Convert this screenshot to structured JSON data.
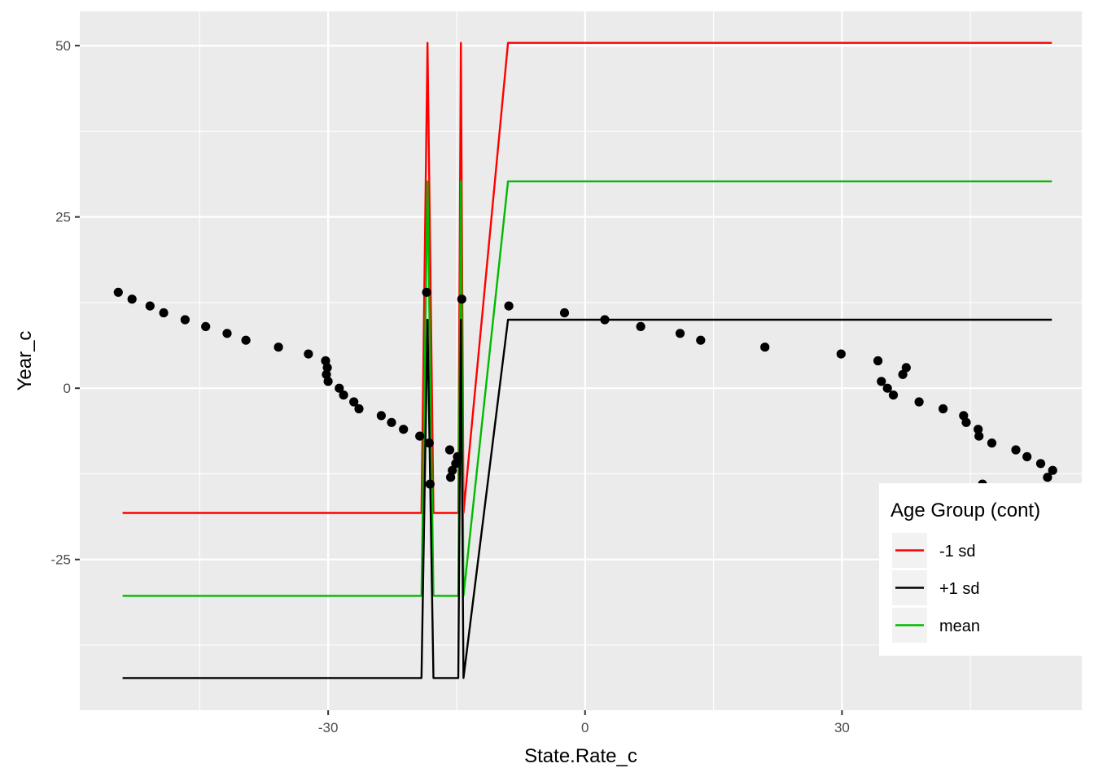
{
  "chart_data": {
    "type": "line",
    "xlabel": "State.Rate_c",
    "ylabel": "Year_c",
    "xlim": [
      -59,
      58
    ],
    "ylim": [
      -47,
      55
    ],
    "x_ticks": [
      -30,
      0,
      30
    ],
    "x_tick_labels": [
      "-30",
      "0",
      "30"
    ],
    "y_ticks": [
      -25,
      0,
      25,
      50
    ],
    "y_tick_labels": [
      "-25",
      "0",
      "25",
      "50"
    ],
    "grid": true,
    "legend": {
      "title": "Age Group (cont)",
      "placement": "bottom-right",
      "entries": [
        {
          "label": "-1 sd",
          "color": "#ff0000"
        },
        {
          "label": "+1 sd",
          "color": "#000000"
        },
        {
          "label": "mean",
          "color": "#00ba00"
        }
      ]
    },
    "scatter": {
      "color": "#000000",
      "points": [
        [
          -54.5,
          14
        ],
        [
          -52.9,
          13
        ],
        [
          -50.8,
          12
        ],
        [
          -49.2,
          11
        ],
        [
          -46.7,
          10
        ],
        [
          -44.3,
          9
        ],
        [
          -41.8,
          8
        ],
        [
          -39.6,
          7
        ],
        [
          -35.8,
          6
        ],
        [
          -32.3,
          5
        ],
        [
          -30.3,
          4
        ],
        [
          -30.1,
          3
        ],
        [
          -30.2,
          2
        ],
        [
          -30.0,
          1
        ],
        [
          -28.7,
          0
        ],
        [
          -28.2,
          -1
        ],
        [
          -27.0,
          -2
        ],
        [
          -26.4,
          -3
        ],
        [
          -23.8,
          -4
        ],
        [
          -22.6,
          -5
        ],
        [
          -21.2,
          -6
        ],
        [
          -19.3,
          -7
        ],
        [
          -18.2,
          -8
        ],
        [
          -15.8,
          -9
        ],
        [
          -14.9,
          -10
        ],
        [
          -15.1,
          -11
        ],
        [
          -15.5,
          -12
        ],
        [
          -15.7,
          -13
        ],
        [
          -18.1,
          -14
        ],
        [
          -18.5,
          14
        ],
        [
          -14.4,
          13
        ],
        [
          -8.9,
          12
        ],
        [
          -2.4,
          11
        ],
        [
          2.3,
          10
        ],
        [
          6.5,
          9
        ],
        [
          11.1,
          8
        ],
        [
          13.5,
          7
        ],
        [
          21.0,
          6
        ],
        [
          29.9,
          5
        ],
        [
          34.2,
          4
        ],
        [
          37.5,
          3
        ],
        [
          37.1,
          2
        ],
        [
          34.6,
          1
        ],
        [
          35.3,
          0
        ],
        [
          36.0,
          -1
        ],
        [
          39.0,
          -2
        ],
        [
          41.8,
          -3
        ],
        [
          44.2,
          -4
        ],
        [
          44.5,
          -5
        ],
        [
          45.9,
          -6
        ],
        [
          46.0,
          -7
        ],
        [
          47.5,
          -8
        ],
        [
          50.3,
          -9
        ],
        [
          51.6,
          -10
        ],
        [
          53.2,
          -11
        ],
        [
          54.6,
          -12
        ],
        [
          54.0,
          -13
        ],
        [
          46.4,
          -14
        ]
      ]
    },
    "series": [
      {
        "name": "-1 sd",
        "color": "#ff0000",
        "points": [
          [
            -54.0,
            -18.2
          ],
          [
            -19.1,
            -18.2
          ],
          [
            -18.4,
            50.4
          ],
          [
            -17.7,
            -18.2
          ],
          [
            -14.8,
            -18.2
          ],
          [
            -14.5,
            50.4
          ],
          [
            -14.2,
            -18.2
          ],
          [
            -9.0,
            50.4
          ],
          [
            54.5,
            50.4
          ]
        ]
      },
      {
        "name": "mean",
        "color": "#00ba00",
        "points": [
          [
            -54.0,
            -30.3
          ],
          [
            -19.1,
            -30.3
          ],
          [
            -18.4,
            30.2
          ],
          [
            -17.7,
            -30.3
          ],
          [
            -14.8,
            -30.3
          ],
          [
            -14.5,
            30.2
          ],
          [
            -14.2,
            -30.3
          ],
          [
            -9.0,
            30.2
          ],
          [
            54.5,
            30.2
          ]
        ]
      },
      {
        "name": "+1 sd",
        "color": "#000000",
        "points": [
          [
            -54.0,
            -42.3
          ],
          [
            -19.1,
            -42.3
          ],
          [
            -18.4,
            10.0
          ],
          [
            -17.7,
            -42.3
          ],
          [
            -14.8,
            -42.3
          ],
          [
            -14.5,
            10.0
          ],
          [
            -14.2,
            -42.3
          ],
          [
            -9.0,
            10.0
          ],
          [
            54.5,
            10.0
          ]
        ]
      }
    ]
  }
}
